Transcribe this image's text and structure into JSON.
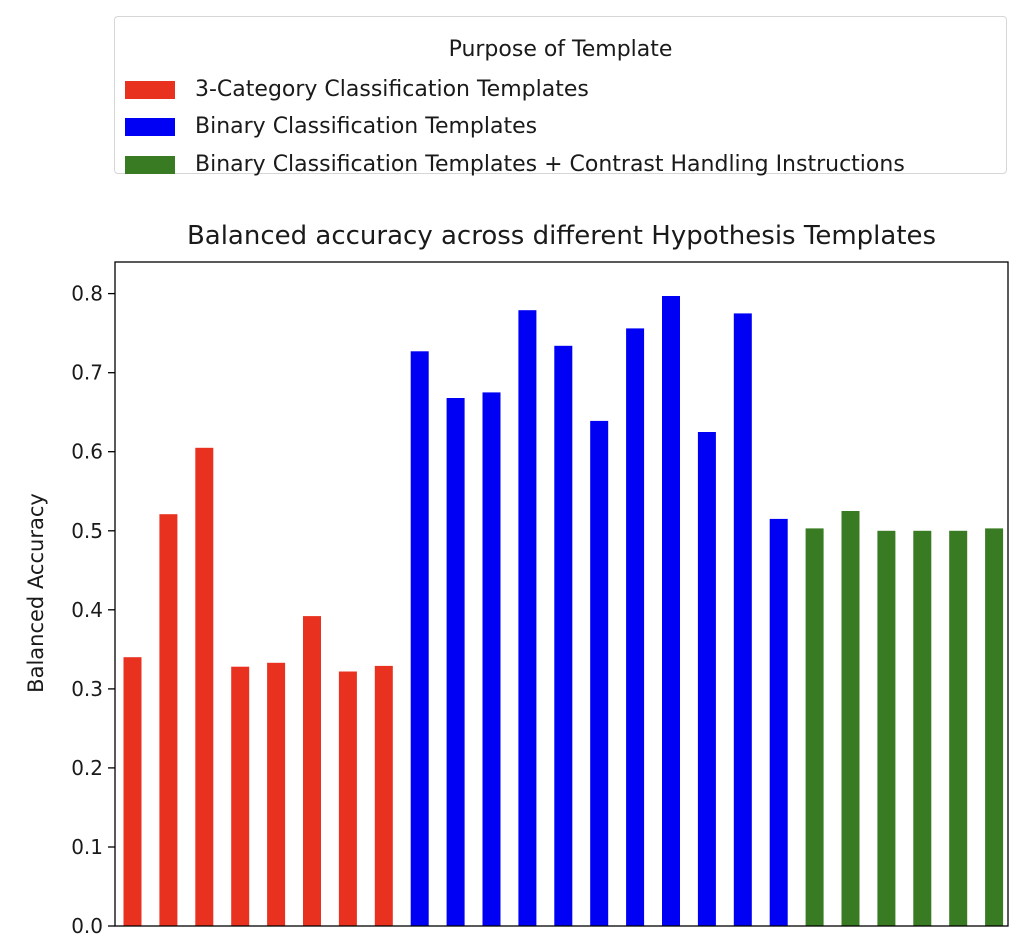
{
  "legend": {
    "title": "Purpose of Template",
    "items": [
      {
        "label": "3-Category Classification Templates",
        "color": "#e8321f"
      },
      {
        "label": "Binary Classification Templates",
        "color": "#0000f5"
      },
      {
        "label": "Binary Classification Templates + Contrast Handling Instructions",
        "color": "#387b22"
      }
    ]
  },
  "chart_data": {
    "type": "bar",
    "title": "Balanced accuracy across different Hypothesis Templates",
    "xlabel": "",
    "ylabel": "Balanced Accuracy",
    "ylim": [
      0,
      0.84
    ],
    "yticks": [
      "0.0",
      "0.1",
      "0.2",
      "0.3",
      "0.4",
      "0.5",
      "0.6",
      "0.7",
      "0.8"
    ],
    "grid": false,
    "legend_position": "top-center, above the plot",
    "series": [
      {
        "name": "3-Category Classification Templates",
        "color": "#e8321f",
        "values": [
          0.34,
          0.521,
          0.605,
          0.328,
          0.333,
          0.392,
          0.322,
          0.329
        ]
      },
      {
        "name": "Binary Classification Templates",
        "color": "#0000f5",
        "values": [
          0.727,
          0.668,
          0.675,
          0.779,
          0.734,
          0.639,
          0.756,
          0.797,
          0.625,
          0.775,
          0.515
        ]
      },
      {
        "name": "Binary Classification Templates + Contrast Handling Instructions",
        "color": "#387b22",
        "values": [
          0.503,
          0.525,
          0.5,
          0.5,
          0.5,
          0.503
        ]
      }
    ]
  }
}
